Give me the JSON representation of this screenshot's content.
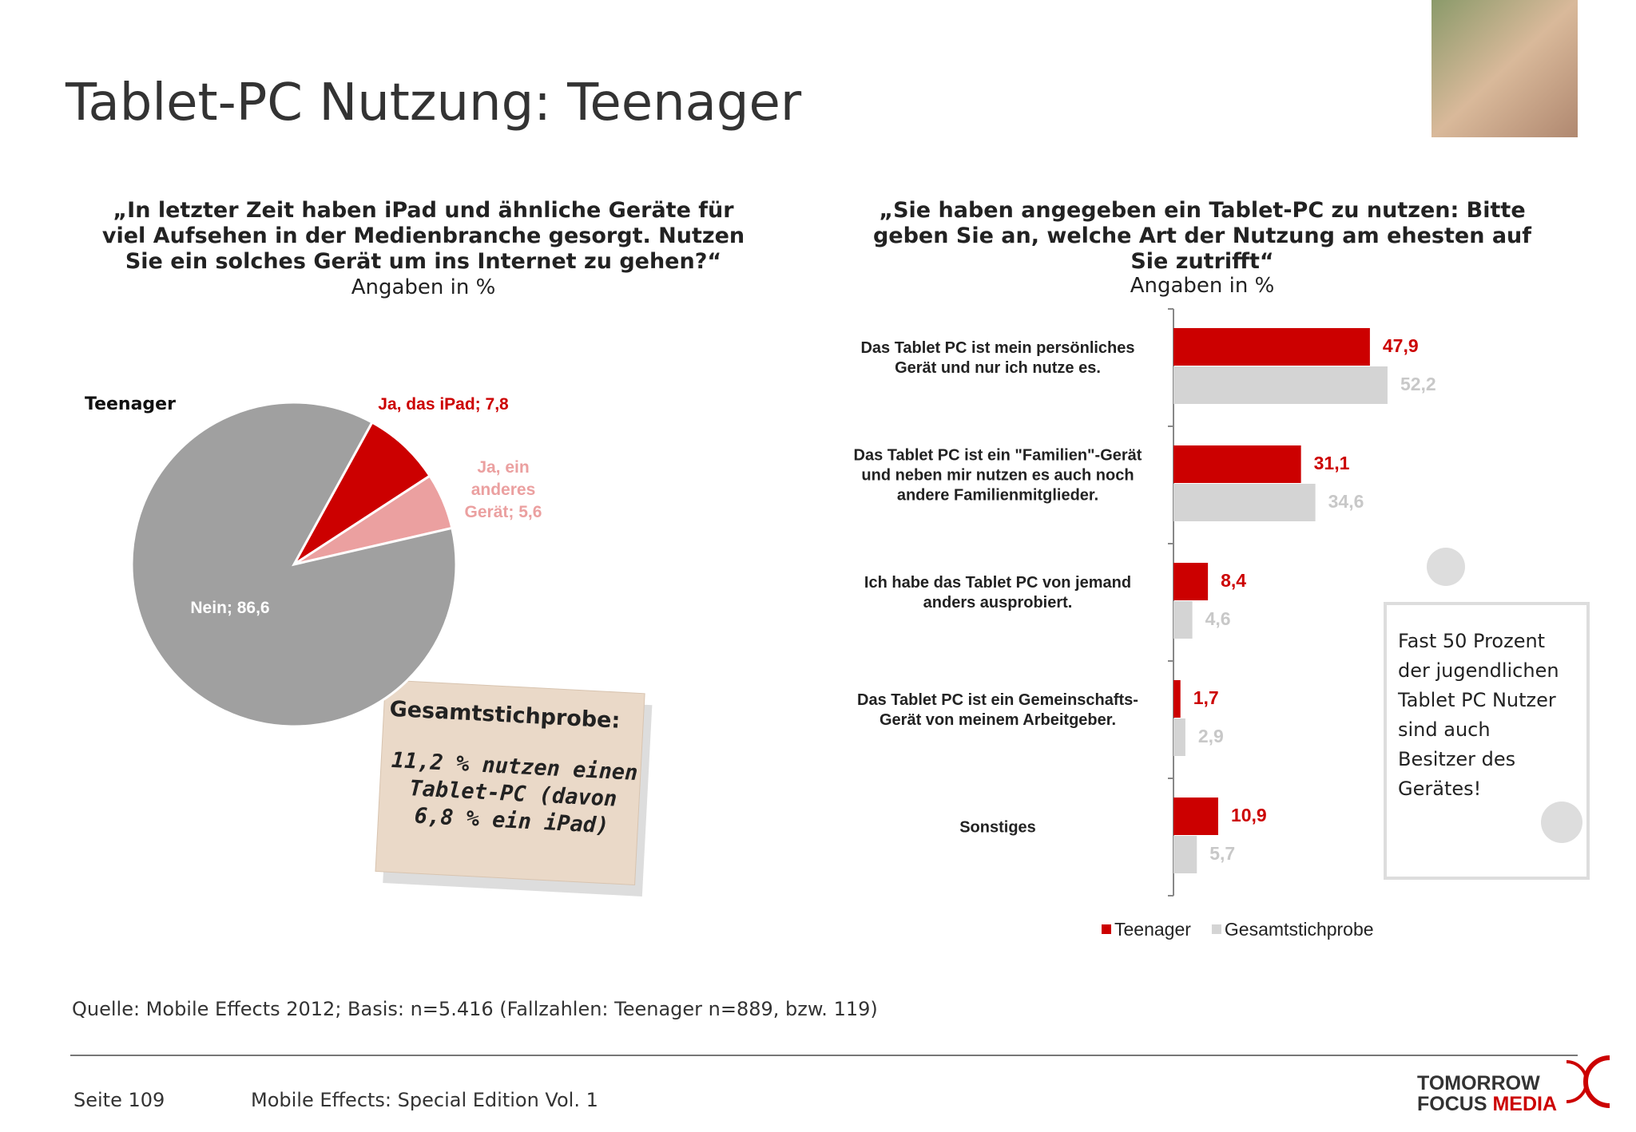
{
  "title": "Tablet-PC Nutzung: Teenager",
  "chart_data": [
    {
      "type": "pie",
      "title": "„In letzter Zeit haben iPad und ähnliche Geräte für viel Aufsehen in der Medienbranche gesorgt. Nutzen Sie ein solches Gerät um ins Internet zu gehen?“",
      "subtitle": "Angaben in %",
      "label": "Teenager",
      "categories": [
        "Ja, das iPad;",
        "Ja, ein anderes Gerät;",
        "Nein;"
      ],
      "values": [
        7.8,
        5.6,
        86.6
      ],
      "value_labels": [
        "7,8",
        "5,6",
        "86,6"
      ],
      "colors": [
        "#cc0000",
        "#eba0a0",
        "#a0a0a0"
      ]
    },
    {
      "type": "hbar",
      "title": "„Sie haben angegeben ein Tablet-PC zu nutzen: Bitte geben Sie an, welche Art der Nutzung am ehesten auf Sie zutrifft“",
      "subtitle": "Angaben in %",
      "categories": [
        "Das Tablet PC ist mein persönliches Gerät und nur ich nutze es.",
        "Das Tablet PC ist ein \"Familien\"-Gerät und neben mir nutzen es auch noch andere Familienmitglieder.",
        "Ich habe das Tablet PC von jemand anders ausprobiert.",
        "Das Tablet PC ist ein Gemeinschafts-Gerät von meinem Arbeitgeber.",
        "Sonstiges"
      ],
      "series": [
        {
          "name": "Teenager",
          "color": "#cc0000",
          "values": [
            47.9,
            31.1,
            8.4,
            1.7,
            10.9
          ],
          "value_labels": [
            "47,9",
            "31,1",
            "8,4",
            "1,7",
            "10,9"
          ]
        },
        {
          "name": "Gesamtstichprobe",
          "color": "#d4d4d4",
          "values": [
            52.2,
            34.6,
            4.6,
            2.9,
            5.7
          ],
          "value_labels": [
            "52,2",
            "34,6",
            "4,6",
            "2,9",
            "5,7"
          ]
        }
      ],
      "xlim": [
        0,
        60
      ]
    }
  ],
  "note_box": {
    "title": "Gesamtstichprobe:",
    "text": "11,2 % nutzen einen Tablet-PC (davon 6,8 % ein iPad)"
  },
  "callout": "Fast 50 Prozent der jugendlichen Tablet PC Nutzer sind auch Besitzer des Gerätes!",
  "source": "Quelle: Mobile Effects 2012; Basis: n=5.416 (Fallzahlen: Teenager n=889, bzw. 119)",
  "footer": {
    "page": "Seite 109",
    "publication": "Mobile Effects: Special Edition Vol. 1",
    "logo_top": "TOMORROW",
    "logo_left": "FOCUS",
    "logo_right": "MEDIA"
  }
}
